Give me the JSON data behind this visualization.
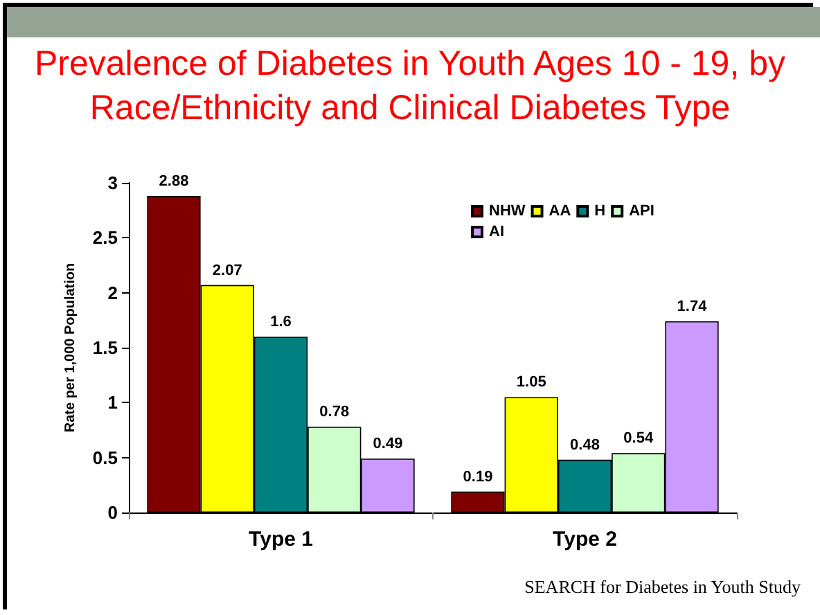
{
  "chart_data": {
    "type": "bar",
    "title": "Prevalence of Diabetes in Youth Ages 10 - 19, by\nRace/Ethnicity and Clinical Diabetes Type",
    "ylabel": "Rate per 1,000 Population",
    "categories": [
      "Type 1",
      "Type 2"
    ],
    "series": [
      {
        "name": "NHW",
        "color": "#800000",
        "values": [
          2.88,
          0.19
        ]
      },
      {
        "name": "AA",
        "color": "#ffff00",
        "values": [
          2.07,
          1.05
        ]
      },
      {
        "name": "H",
        "color": "#008080",
        "values": [
          1.6,
          0.48
        ]
      },
      {
        "name": "API",
        "color": "#ccffcc",
        "values": [
          0.78,
          0.54
        ]
      },
      {
        "name": "AI",
        "color": "#cc99ff",
        "values": [
          0.49,
          1.74
        ]
      }
    ],
    "ylim": [
      0,
      3
    ],
    "yticks": [
      0,
      0.5,
      1,
      1.5,
      2,
      2.5,
      3
    ],
    "grid": false,
    "legend": "top right",
    "data_labels": true,
    "annotations": [
      "SEARCH for Diabetes in Youth Study"
    ]
  }
}
